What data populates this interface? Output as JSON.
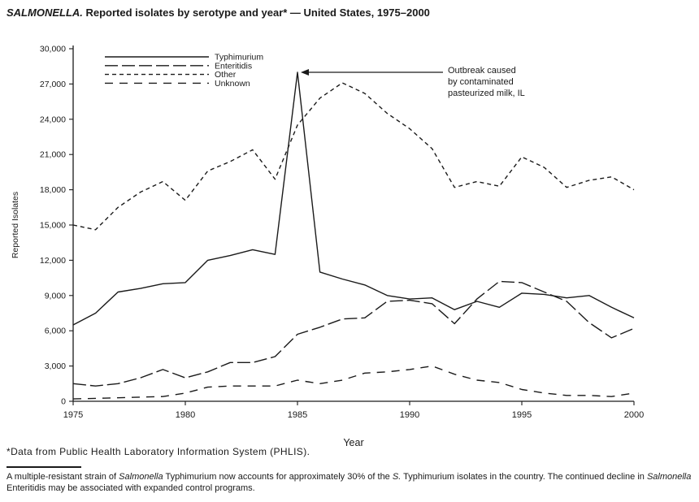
{
  "title": {
    "italic": "SALMONELLA.",
    "rest": " Reported isolates by serotype and year* — United States, 1975–2000"
  },
  "footnote": "*Data from Public Health Laboratory Information System (PHLIS).",
  "caption_segments": [
    {
      "text": "A multiple-resistant strain of ",
      "italic": false
    },
    {
      "text": "Salmonella",
      "italic": true
    },
    {
      "text": " Typhimurium now accounts for approximately 30% of the ",
      "italic": false
    },
    {
      "text": "S.",
      "italic": true
    },
    {
      "text": " Typhimurium isolates in the country. The continued decline in ",
      "italic": false
    },
    {
      "text": "Salmonella",
      "italic": true
    },
    {
      "text": " Enteritidis may be associated with expanded control programs.",
      "italic": false
    }
  ],
  "colors": {
    "ink": "#1a1a1a",
    "background": "#ffffff"
  },
  "chart_data": {
    "type": "line",
    "title": "SALMONELLA. Reported isolates by serotype and year — United States, 1975–2000",
    "xlabel": "Year",
    "ylabel": "Reported Isolates",
    "ylim": [
      0,
      30000
    ],
    "yticks": [
      0,
      3000,
      6000,
      9000,
      12000,
      15000,
      18000,
      21000,
      24000,
      27000,
      30000
    ],
    "ytick_labels": [
      "0",
      "3,000",
      "6,000",
      "9,000",
      "12,000",
      "15,000",
      "18,000",
      "21,000",
      "24,000",
      "27,000",
      "30,000"
    ],
    "xticks": [
      1975,
      1980,
      1985,
      1990,
      1995,
      2000
    ],
    "xtick_labels": [
      "1975",
      "1980",
      "1985",
      "1990",
      "1995",
      "2000"
    ],
    "xlim": [
      1975,
      2000
    ],
    "legend_position": "top-left",
    "grid": false,
    "x": [
      1975,
      1976,
      1977,
      1978,
      1979,
      1980,
      1981,
      1982,
      1983,
      1984,
      1985,
      1986,
      1987,
      1988,
      1989,
      1990,
      1991,
      1992,
      1993,
      1994,
      1995,
      1996,
      1997,
      1998,
      1999,
      2000
    ],
    "series": [
      {
        "name": "Typhimurium",
        "dash": "",
        "values": [
          6500,
          7500,
          9300,
          9600,
          10000,
          10100,
          12000,
          12400,
          12900,
          12500,
          28000,
          11000,
          10400,
          9900,
          9000,
          8700,
          8800,
          7800,
          8500,
          8000,
          9200,
          9100,
          8800,
          9000,
          8000,
          7100
        ]
      },
      {
        "name": "Enteritidis",
        "dash": "16,5",
        "values": [
          1500,
          1300,
          1500,
          2000,
          2700,
          2000,
          2500,
          3300,
          3300,
          3800,
          5700,
          6300,
          7000,
          7100,
          8500,
          8600,
          8300,
          6600,
          8700,
          10200,
          10100,
          9300,
          8500,
          6700,
          5400,
          6200
        ]
      },
      {
        "name": "Other",
        "dash": "5,4",
        "values": [
          15000,
          14600,
          16500,
          17800,
          18700,
          17100,
          19600,
          20400,
          21400,
          18900,
          23500,
          25800,
          27100,
          26200,
          24500,
          23200,
          21500,
          18200,
          18700,
          18300,
          20800,
          19900,
          18200,
          18800,
          19100,
          18000
        ]
      },
      {
        "name": "Unknown",
        "dash": "10,8",
        "values": [
          200,
          250,
          300,
          350,
          400,
          700,
          1200,
          1300,
          1300,
          1300,
          1800,
          1500,
          1800,
          2400,
          2500,
          2700,
          3000,
          2300,
          1800,
          1600,
          1000,
          700,
          500,
          500,
          400,
          700
        ]
      }
    ],
    "annotation": {
      "lines": [
        "Outbreak caused",
        "by contaminated",
        "pasteurized milk, IL"
      ],
      "target_x": 1985,
      "target_y": 28000
    }
  }
}
